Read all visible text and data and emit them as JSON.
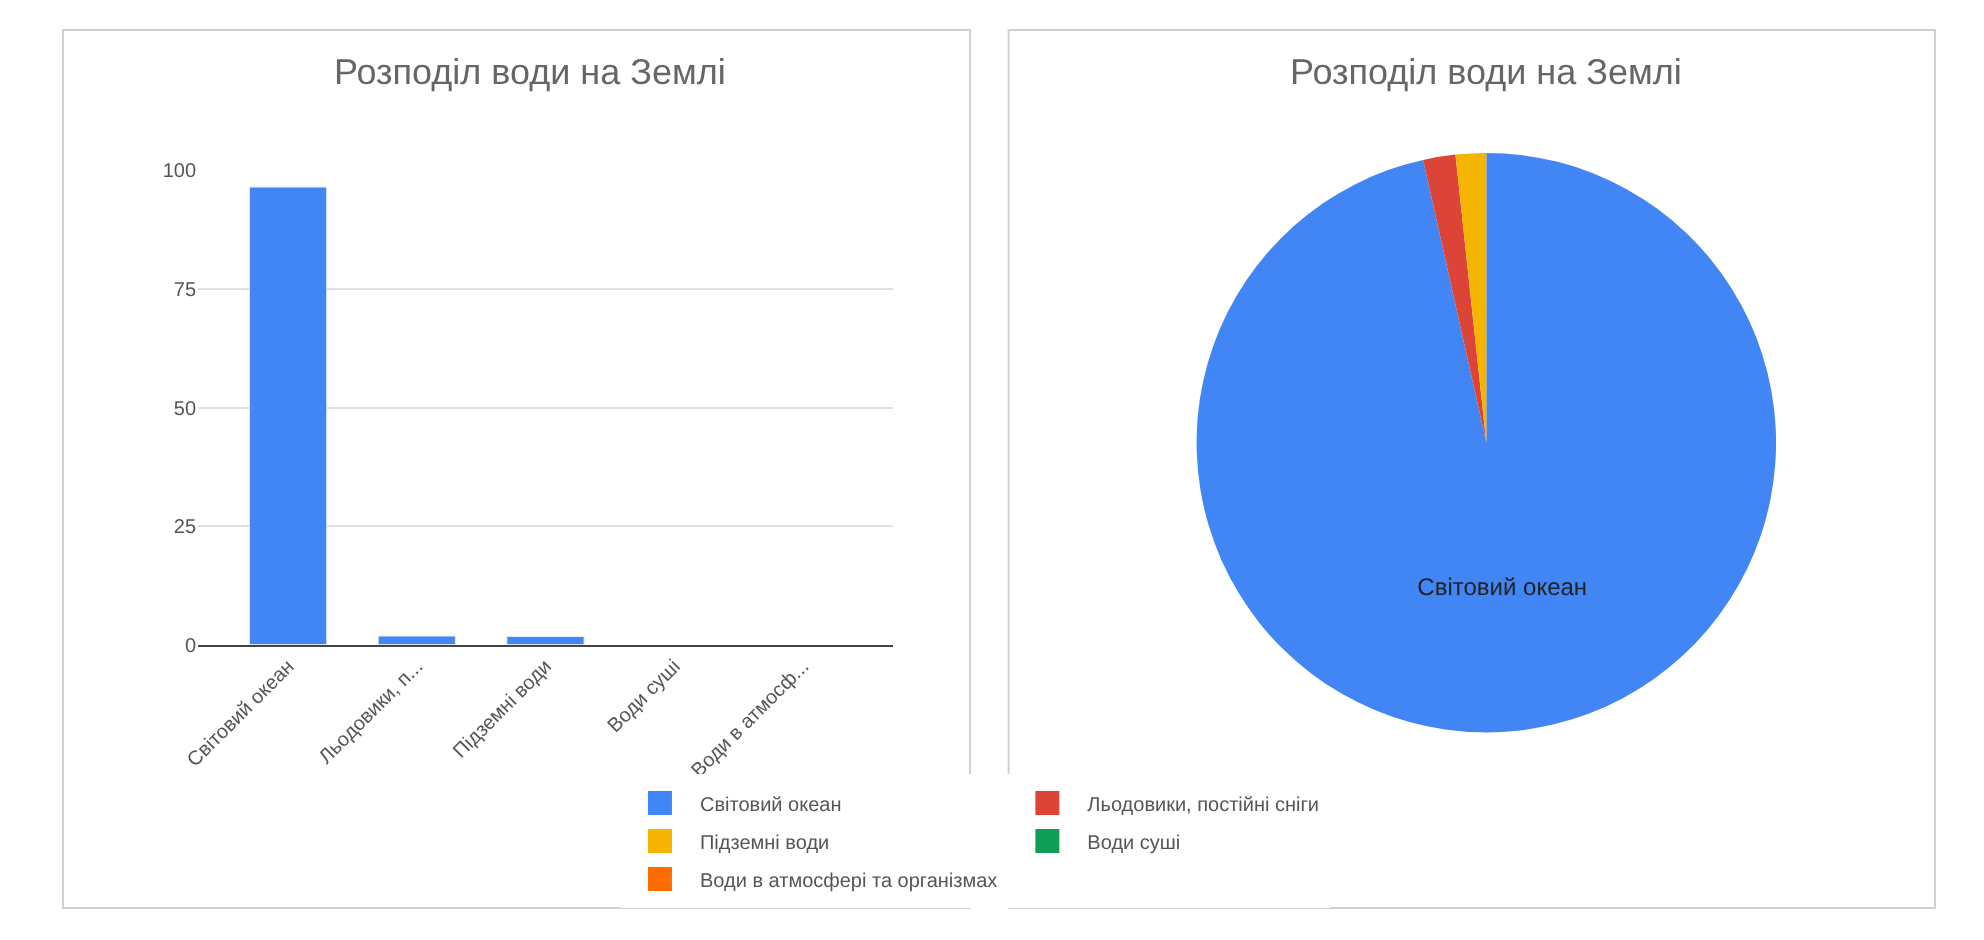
{
  "chart_data": [
    {
      "type": "bar",
      "title": "Розподіл води на Землі",
      "categories": [
        "Світовий океан",
        "Льодовики, п...",
        "Підземні води",
        "Води суші",
        "Води в атмосф..."
      ],
      "values": [
        96.5,
        1.8,
        1.7,
        null,
        null
      ],
      "color": "#4285f4",
      "ylim": [
        0,
        100
      ],
      "yticks": [
        0,
        25,
        50,
        75,
        100
      ],
      "grid": "y",
      "legend": false
    },
    {
      "type": "pie",
      "title": "Розподіл води на Землі",
      "categories": [
        "Світовий океан",
        "Льодовики, постійні сніги",
        "Підземні води",
        "Води суші",
        "Води в атмосфері та організмах"
      ],
      "values": [
        96.5,
        1.8,
        1.7,
        0,
        0
      ],
      "colors": [
        "#4285f4",
        "#db4437",
        "#f4b400",
        "#0f9d58",
        "#ff6d01"
      ],
      "legend": "bottom"
    }
  ]
}
